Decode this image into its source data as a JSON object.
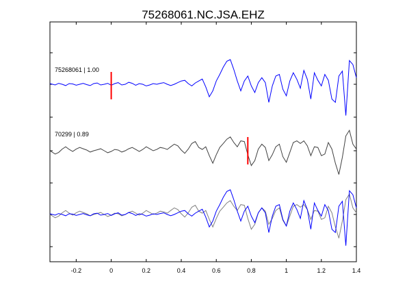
{
  "chart_data": {
    "type": "line",
    "title": "75268061.NC.JSA.EHZ",
    "xlabel": "",
    "ylabel": "",
    "xlim": [
      -0.35,
      1.4
    ],
    "x_ticks": [
      -0.2,
      0,
      0.2,
      0.4,
      0.6,
      0.8,
      1,
      1.2,
      1.4
    ],
    "x_tick_labels": [
      "-0.2",
      "0",
      "0.2",
      "0.4",
      "0.6",
      "0.8",
      "1",
      "1.2",
      "1.4"
    ],
    "grid": false,
    "colors": {
      "template": "#0000ff",
      "match": "#404040",
      "overlay_match": "#808080",
      "pick": "#ff0000",
      "axes": "#000000"
    },
    "series": [
      {
        "name": "75268061 | 1.00",
        "label": "75268061 | 1.00",
        "color": "#0000ff",
        "offset": 2,
        "pick_time": 0.0,
        "x": [
          -0.35,
          -0.32,
          -0.3,
          -0.28,
          -0.26,
          -0.24,
          -0.22,
          -0.2,
          -0.18,
          -0.16,
          -0.14,
          -0.12,
          -0.1,
          -0.08,
          -0.06,
          -0.04,
          -0.02,
          0,
          0.02,
          0.04,
          0.06,
          0.08,
          0.1,
          0.12,
          0.14,
          0.16,
          0.18,
          0.2,
          0.22,
          0.24,
          0.26,
          0.28,
          0.3,
          0.32,
          0.34,
          0.36,
          0.38,
          0.4,
          0.42,
          0.44,
          0.46,
          0.48,
          0.5,
          0.52,
          0.54,
          0.56,
          0.58,
          0.6,
          0.62,
          0.64,
          0.66,
          0.68,
          0.7,
          0.72,
          0.74,
          0.76,
          0.78,
          0.8,
          0.82,
          0.84,
          0.86,
          0.88,
          0.9,
          0.92,
          0.94,
          0.96,
          0.98,
          1.0,
          1.02,
          1.04,
          1.06,
          1.08,
          1.1,
          1.12,
          1.14,
          1.16,
          1.18,
          1.2,
          1.22,
          1.24,
          1.26,
          1.28,
          1.3,
          1.32,
          1.34,
          1.36,
          1.38,
          1.4
        ],
        "y": [
          0.02,
          -0.02,
          0.03,
          0.0,
          -0.04,
          0.02,
          0.01,
          -0.03,
          0.0,
          0.03,
          -0.01,
          -0.04,
          0.02,
          0.04,
          -0.02,
          0.0,
          0.03,
          -0.03,
          0.02,
          0.05,
          -0.02,
          0.0,
          0.06,
          0.03,
          -0.03,
          0.02,
          0.0,
          -0.05,
          -0.02,
          0.02,
          0.0,
          0.03,
          0.05,
          0.0,
          -0.04,
          0.0,
          0.05,
          0.1,
          0.12,
          0.02,
          -0.05,
          0.04,
          0.1,
          0.16,
          -0.08,
          -0.38,
          -0.2,
          0.1,
          0.3,
          0.52,
          0.7,
          0.75,
          0.45,
          0.1,
          -0.2,
          0.1,
          0.25,
          -0.05,
          -0.25,
          0.05,
          0.2,
          0.05,
          -0.55,
          -0.05,
          0.25,
          0.3,
          -0.15,
          -0.35,
          0.1,
          0.35,
          0.15,
          -0.12,
          0.42,
          0.15,
          -0.45,
          0.35,
          0.12,
          -0.05,
          0.3,
          0.12,
          -0.45,
          -0.55,
          0.25,
          0.4,
          -0.95,
          0.72,
          0.6,
          0.2
        ]
      },
      {
        "name": "70299 | 0.89",
        "label": "70299 | 0.89",
        "color": "#404040",
        "offset": 1,
        "pick_time": 0.78,
        "x": [
          -0.35,
          -0.32,
          -0.3,
          -0.28,
          -0.26,
          -0.24,
          -0.22,
          -0.2,
          -0.18,
          -0.16,
          -0.14,
          -0.12,
          -0.1,
          -0.08,
          -0.06,
          -0.04,
          -0.02,
          0,
          0.02,
          0.04,
          0.06,
          0.08,
          0.1,
          0.12,
          0.14,
          0.16,
          0.18,
          0.2,
          0.22,
          0.24,
          0.26,
          0.28,
          0.3,
          0.32,
          0.34,
          0.36,
          0.38,
          0.4,
          0.42,
          0.44,
          0.46,
          0.48,
          0.5,
          0.52,
          0.54,
          0.56,
          0.58,
          0.6,
          0.62,
          0.64,
          0.66,
          0.68,
          0.7,
          0.72,
          0.74,
          0.76,
          0.78,
          0.8,
          0.82,
          0.84,
          0.86,
          0.88,
          0.9,
          0.92,
          0.94,
          0.96,
          0.98,
          1.0,
          1.02,
          1.04,
          1.06,
          1.08,
          1.1,
          1.12,
          1.14,
          1.16,
          1.18,
          1.2,
          1.22,
          1.24,
          1.26,
          1.28,
          1.3,
          1.32,
          1.34,
          1.36,
          1.38,
          1.4
        ],
        "y": [
          0.0,
          -0.1,
          -0.05,
          0.05,
          0.12,
          0.04,
          -0.02,
          0.05,
          0.1,
          0.06,
          0.02,
          -0.04,
          0.0,
          0.03,
          0.06,
          0.0,
          -0.06,
          -0.02,
          0.04,
          0.02,
          -0.04,
          0.0,
          0.06,
          0.1,
          0.04,
          -0.02,
          0.04,
          0.12,
          0.06,
          0.0,
          0.04,
          0.1,
          0.08,
          0.04,
          0.12,
          0.2,
          0.15,
          0.02,
          -0.08,
          0.05,
          0.22,
          0.28,
          0.1,
          0.04,
          0.12,
          -0.15,
          -0.38,
          -0.12,
          0.1,
          0.22,
          0.35,
          0.42,
          0.25,
          0.12,
          0.3,
          0.28,
          -0.12,
          -0.45,
          -0.3,
          0.05,
          0.2,
          0.1,
          -0.3,
          -0.12,
          0.12,
          0.2,
          -0.18,
          -0.35,
          -0.05,
          0.25,
          0.3,
          0.22,
          0.3,
          0.15,
          -0.15,
          0.12,
          0.1,
          -0.15,
          -0.1,
          0.25,
          0.05,
          -0.38,
          -0.72,
          -0.2,
          0.45,
          0.62,
          0.2,
          0.05
        ]
      },
      {
        "name": "overlay",
        "label": "",
        "color": "#0000ff",
        "offset": 0,
        "pick_time": null,
        "x": [],
        "y": []
      }
    ]
  }
}
